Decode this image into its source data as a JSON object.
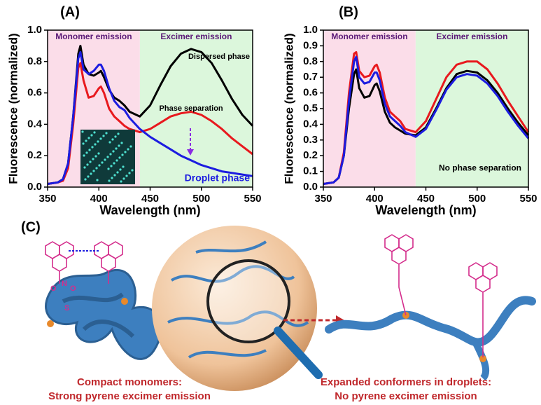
{
  "chart_data": [
    {
      "type": "line",
      "title": "(A)",
      "xlabel": "Wavelength (nm)",
      "ylabel": "Fluorescence (normalized)",
      "regions": [
        {
          "label": "Monomer emission",
          "from": 350,
          "to": 440,
          "color": "#fbdde9"
        },
        {
          "label": "Excimer emission",
          "from": 440,
          "to": 550,
          "color": "#dcf7dc"
        }
      ],
      "x": [
        350,
        360,
        365,
        370,
        375,
        380,
        382,
        385,
        390,
        395,
        400,
        402,
        405,
        410,
        415,
        420,
        425,
        430,
        440,
        450,
        460,
        470,
        480,
        490,
        500,
        510,
        520,
        530,
        540,
        550
      ],
      "series": [
        {
          "name": "Dispersed phase",
          "color": "#000000",
          "values": [
            0.02,
            0.03,
            0.05,
            0.15,
            0.45,
            0.85,
            0.9,
            0.78,
            0.72,
            0.71,
            0.73,
            0.74,
            0.7,
            0.62,
            0.57,
            0.55,
            0.52,
            0.48,
            0.45,
            0.52,
            0.65,
            0.77,
            0.85,
            0.88,
            0.86,
            0.79,
            0.68,
            0.56,
            0.46,
            0.39
          ]
        },
        {
          "name": "Phase separation",
          "color": "#e8191e",
          "values": [
            0.02,
            0.03,
            0.04,
            0.12,
            0.4,
            0.76,
            0.79,
            0.68,
            0.57,
            0.58,
            0.63,
            0.64,
            0.6,
            0.5,
            0.45,
            0.42,
            0.39,
            0.37,
            0.35,
            0.37,
            0.41,
            0.45,
            0.47,
            0.48,
            0.46,
            0.42,
            0.37,
            0.31,
            0.26,
            0.21
          ]
        },
        {
          "name": "Droplet phase",
          "color": "#1c1ce0",
          "values": [
            0.02,
            0.03,
            0.05,
            0.15,
            0.45,
            0.82,
            0.86,
            0.75,
            0.72,
            0.74,
            0.78,
            0.78,
            0.74,
            0.63,
            0.55,
            0.51,
            0.49,
            0.44,
            0.37,
            0.32,
            0.28,
            0.24,
            0.2,
            0.17,
            0.14,
            0.12,
            0.1,
            0.09,
            0.08,
            0.07
          ]
        }
      ],
      "xlim": [
        350,
        550
      ],
      "xticks": [
        350,
        400,
        450,
        500,
        550
      ],
      "ylim": [
        0,
        1
      ],
      "yticks": [
        {
          "value": 0,
          "label": "0.0"
        },
        0.2,
        0.4,
        0.6,
        0.8,
        {
          "value": 1,
          "label": "1.0"
        }
      ]
    },
    {
      "type": "line",
      "title": "(B)",
      "xlabel": "Wavelength (nm)",
      "ylabel": "Fluorescence (normalized)",
      "annotation": "No phase separation",
      "regions": [
        {
          "label": "Monomer emission",
          "from": 350,
          "to": 440,
          "color": "#fbdde9"
        },
        {
          "label": "Excimer emission",
          "from": 440,
          "to": 550,
          "color": "#dcf7dc"
        }
      ],
      "x": [
        350,
        360,
        365,
        370,
        375,
        380,
        382,
        385,
        390,
        395,
        400,
        402,
        405,
        410,
        415,
        420,
        425,
        430,
        440,
        450,
        460,
        470,
        480,
        490,
        500,
        510,
        520,
        530,
        540,
        550
      ],
      "series": [
        {
          "color": "#000000",
          "values": [
            0.02,
            0.03,
            0.06,
            0.2,
            0.5,
            0.72,
            0.75,
            0.63,
            0.57,
            0.58,
            0.65,
            0.66,
            0.61,
            0.48,
            0.41,
            0.38,
            0.36,
            0.34,
            0.33,
            0.38,
            0.5,
            0.63,
            0.72,
            0.74,
            0.73,
            0.68,
            0.6,
            0.5,
            0.41,
            0.33
          ]
        },
        {
          "color": "#e8191e",
          "values": [
            0.02,
            0.03,
            0.06,
            0.22,
            0.6,
            0.85,
            0.86,
            0.74,
            0.7,
            0.71,
            0.77,
            0.78,
            0.73,
            0.57,
            0.48,
            0.45,
            0.42,
            0.37,
            0.35,
            0.42,
            0.56,
            0.7,
            0.78,
            0.8,
            0.8,
            0.75,
            0.66,
            0.55,
            0.45,
            0.35
          ]
        },
        {
          "color": "#1c1ce0",
          "values": [
            0.02,
            0.03,
            0.06,
            0.2,
            0.55,
            0.8,
            0.83,
            0.7,
            0.66,
            0.67,
            0.73,
            0.73,
            0.68,
            0.53,
            0.45,
            0.42,
            0.39,
            0.35,
            0.32,
            0.37,
            0.49,
            0.62,
            0.7,
            0.72,
            0.71,
            0.66,
            0.58,
            0.48,
            0.39,
            0.31
          ]
        }
      ],
      "xlim": [
        350,
        550
      ],
      "xticks": [
        350,
        400,
        450,
        500,
        550
      ],
      "ylim": [
        0,
        1
      ],
      "yticks": [
        {
          "value": 0,
          "label": "0.0"
        },
        0.1,
        0.2,
        0.3,
        0.4,
        0.5,
        0.6,
        0.7,
        0.8,
        0.9,
        {
          "value": 1,
          "label": "1.0"
        }
      ]
    }
  ],
  "diagram": {
    "label": "(C)",
    "left_caption": [
      "Compact monomers:",
      "Strong pyrene excimer emission"
    ],
    "right_caption": [
      "Expanded conformers in droplets:",
      "No pyrene excimer emission"
    ],
    "atoms": [
      "O",
      "N",
      "O",
      "S"
    ]
  }
}
